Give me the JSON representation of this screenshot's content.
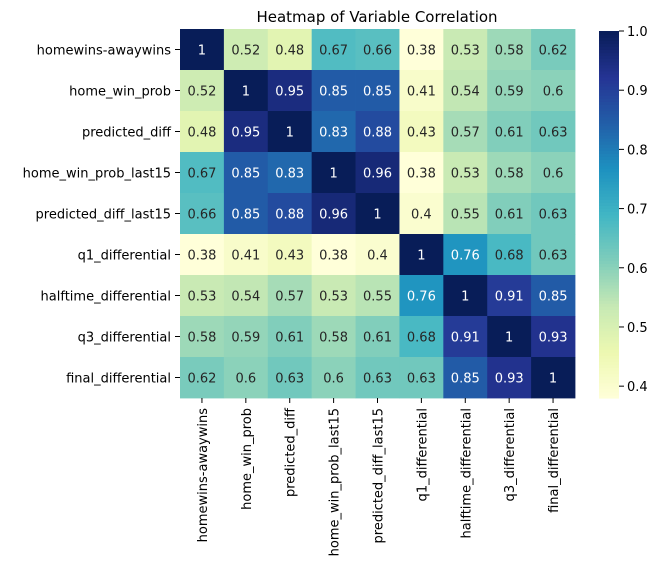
{
  "chart_data": {
    "type": "heatmap",
    "title": "Heatmap of Variable Correlation",
    "variables": [
      "homewins-awaywins",
      "home_win_prob",
      "predicted_diff",
      "home_win_prob_last15",
      "predicted_diff_last15",
      "q1_differential",
      "halftime_differential",
      "q3_differential",
      "final_differential"
    ],
    "matrix": [
      [
        1,
        0.52,
        0.48,
        0.67,
        0.66,
        0.38,
        0.53,
        0.58,
        0.62
      ],
      [
        0.52,
        1,
        0.95,
        0.85,
        0.85,
        0.41,
        0.54,
        0.59,
        0.6
      ],
      [
        0.48,
        0.95,
        1,
        0.83,
        0.88,
        0.43,
        0.57,
        0.61,
        0.63
      ],
      [
        0.67,
        0.85,
        0.83,
        1,
        0.96,
        0.38,
        0.53,
        0.58,
        0.6
      ],
      [
        0.66,
        0.85,
        0.88,
        0.96,
        1,
        0.4,
        0.55,
        0.61,
        0.63
      ],
      [
        0.38,
        0.41,
        0.43,
        0.38,
        0.4,
        1,
        0.76,
        0.68,
        0.63
      ],
      [
        0.53,
        0.54,
        0.57,
        0.53,
        0.55,
        0.76,
        1,
        0.91,
        0.85
      ],
      [
        0.58,
        0.59,
        0.61,
        0.58,
        0.61,
        0.68,
        0.91,
        1,
        0.93
      ],
      [
        0.62,
        0.6,
        0.63,
        0.6,
        0.63,
        0.63,
        0.85,
        0.93,
        1
      ]
    ],
    "colormap": "YlGnBu",
    "value_range": [
      0.38,
      1.0
    ],
    "colorbar_ticks": [
      "0.4",
      "0.5",
      "0.6",
      "0.7",
      "0.8",
      "0.9",
      "1.0"
    ],
    "colorbar_tick_values": [
      0.4,
      0.5,
      0.6,
      0.7,
      0.8,
      0.9,
      1.0
    ],
    "colorscale": [
      "#ffffd9",
      "#edf8b1",
      "#c7e9b4",
      "#7fcdbb",
      "#41b6c4",
      "#1d91c0",
      "#225ea8",
      "#253494",
      "#081d58"
    ],
    "annotation_dark_color": "#262626",
    "annotation_light_color": "#ffffff"
  }
}
